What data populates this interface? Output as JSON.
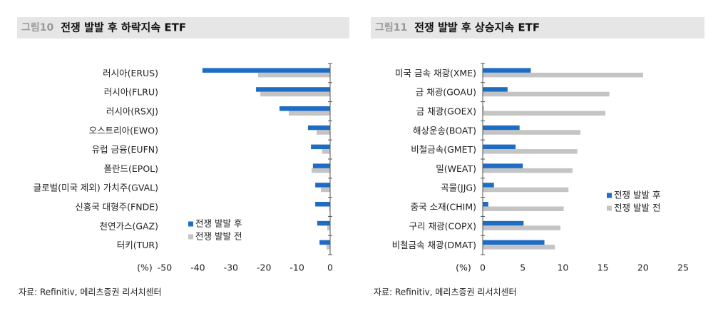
{
  "chart_data": [
    {
      "type": "bar",
      "orientation": "horizontal",
      "figure_label": "그림10",
      "title": "전쟁 발발 후 하락지속 ETF",
      "categories": [
        "러시아(ERUS)",
        "러시아(FLRU)",
        "러시아(RSXJ)",
        "오스트리아(EWO)",
        "유럽 금융(EUFN)",
        "폴란드(EPOL)",
        "글로벌(미국 제외) 가치주(GVAL)",
        "신흥국 대형주(FNDE)",
        "천연가스(GAZ)",
        "터키(TUR)"
      ],
      "series": [
        {
          "name": "전쟁 발발 후",
          "color": "#1f6cc4",
          "values": [
            -38.6,
            -22.4,
            -15.3,
            -6.7,
            -5.8,
            -5.2,
            -4.5,
            -4.5,
            -3.9,
            -3.2
          ]
        },
        {
          "name": "전쟁 발발 전",
          "color": "#c4c4c4",
          "values": [
            -21.8,
            -21.1,
            -12.5,
            -4.1,
            -2.4,
            -5.6,
            -2.8,
            -0.3,
            -0.9,
            -1.1
          ]
        }
      ],
      "xlabel": "(%)",
      "xlim": [
        -50,
        0
      ],
      "xticks": [
        -50,
        -40,
        -30,
        -20,
        -10,
        0
      ],
      "legend": "lower right",
      "source": "자료: Refinitiv, 메리츠증권 리서치센터"
    },
    {
      "type": "bar",
      "orientation": "horizontal",
      "figure_label": "그림11",
      "title": "전쟁 발발 후 상승지속 ETF",
      "categories": [
        "미국 금속 채광(XME)",
        "금 채광(GOAU)",
        "금 채광(GOEX)",
        "해상운송(BOAT)",
        "비철금속(GMET)",
        "밀(WEAT)",
        "곡물(JJG)",
        "중국 소재(CHIM)",
        "구리 채광(COPX)",
        "비철금속 채광(DMAT)"
      ],
      "series": [
        {
          "name": "전쟁 발발 후",
          "color": "#1f6cc4",
          "values": [
            6.0,
            3.1,
            0.1,
            4.6,
            4.1,
            5.0,
            1.4,
            0.7,
            5.1,
            7.7
          ]
        },
        {
          "name": "전쟁 발발 전",
          "color": "#c4c4c4",
          "values": [
            20.0,
            15.8,
            15.3,
            12.2,
            11.8,
            11.2,
            10.7,
            10.1,
            9.7,
            9.0
          ]
        }
      ],
      "xlabel": "(%)",
      "xlim": [
        0,
        25
      ],
      "xticks": [
        0,
        5,
        10,
        15,
        20,
        25
      ],
      "legend": "center right",
      "source": "자료: Refinitiv, 메리츠증권 리서치센터"
    }
  ]
}
